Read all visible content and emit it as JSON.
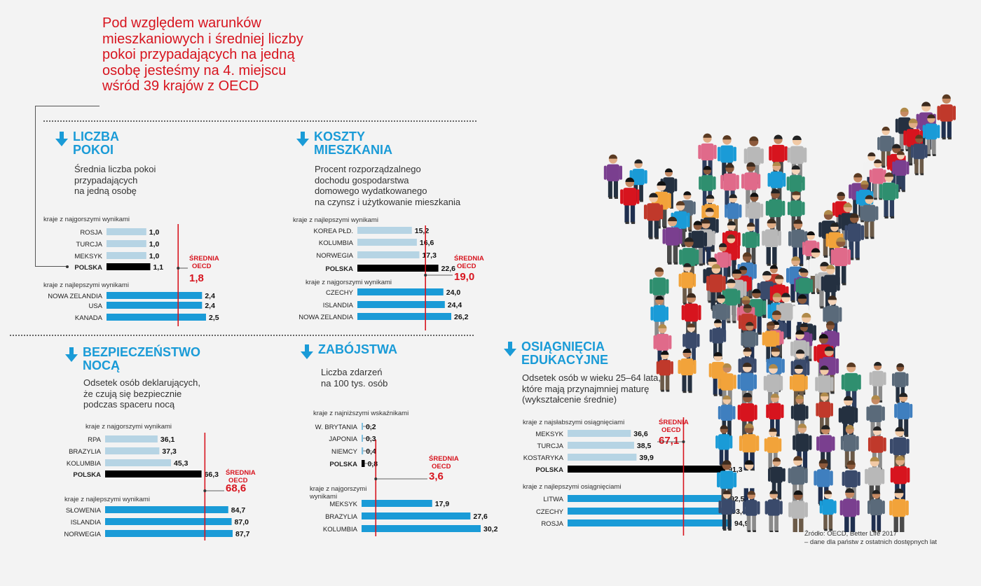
{
  "headline": "Pod względem warunków mieszkaniowych i średniej liczby pokoi przypadających na jedną osobę jesteśmy na 4. miejscu wśród 39 krajów z OECD",
  "source": {
    "line1": "Źródło: OECD, Better Life 2017",
    "line2": "– dane dla państw z ostatnich dostępnych lat"
  },
  "colors": {
    "accent": "#d7141e",
    "title": "#1a9bd7",
    "best_bar": "#1a9bd7",
    "worst_bar": "#b6d4e4",
    "poland_bar": "#000000"
  },
  "icons": [
    "arrow-down-icon"
  ],
  "sections": {
    "rooms": {
      "title_line1": "LICZBA",
      "title_line2": "POKOI",
      "desc_line1": "Średnia liczba pokoi",
      "desc_line2": "przypadających",
      "desc_line3": "na jedną osobę"
    },
    "housing": {
      "title_line1": "KOSZTY",
      "title_line2": "MIESZKANIA",
      "desc_line1": "Procent rozporządzalnego",
      "desc_line2": "dochodu gospodarstwa",
      "desc_line3": "domowego wydatkowanego",
      "desc_line4": "na czynsz i użytkowanie mieszkania"
    },
    "safety": {
      "title_line1": "BEZPIECZEŃSTWO",
      "title_line2": "NOCĄ",
      "desc_line1": "Odsetek osób deklarujących,",
      "desc_line2": "że czują się bezpiecznie",
      "desc_line3": "podczas spaceru nocą"
    },
    "homicides": {
      "title_line1": "ZABÓJSTWA",
      "desc_line1": "Liczba zdarzeń",
      "desc_line2": "na 100 tys. osób"
    },
    "education": {
      "title_line1": "OSIĄGNIĘCIA",
      "title_line2": "EDUKACYJNE",
      "desc_line1": "Odsetek osób w wieku 25–64 lata,",
      "desc_line2": "które mają przynajmniej maturę",
      "desc_line3": "(wykształcenie średnie)"
    }
  },
  "chart_data": [
    {
      "id": "rooms",
      "type": "bar",
      "max": 2.5,
      "group1_label": "kraje z najgorszymi wynikami",
      "group2_label": "kraje z najlepszymi wynikami",
      "group1": [
        {
          "c": "ROSJA",
          "v": 1.0,
          "t": "1,0"
        },
        {
          "c": "TURCJA",
          "v": 1.0,
          "t": "1,0"
        },
        {
          "c": "MEKSYK",
          "v": 1.0,
          "t": "1,0"
        }
      ],
      "poland": {
        "c": "POLSKA",
        "v": 1.1,
        "t": "1,1"
      },
      "group2": [
        {
          "c": "NOWA ZELANDIA",
          "v": 2.4,
          "t": "2,4"
        },
        {
          "c": "USA",
          "v": 2.4,
          "t": "2,4"
        },
        {
          "c": "KANADA",
          "v": 2.5,
          "t": "2,5"
        }
      ],
      "avg": {
        "label1": "ŚREDNIA",
        "label2": "OECD",
        "v": 1.8,
        "t": "1,8"
      }
    },
    {
      "id": "housing",
      "type": "bar",
      "max": 26.2,
      "group1_label": "kraje z najlepszymi wynikami",
      "group2_label": "kraje z najgorszymi wynikami",
      "group1": [
        {
          "c": "KOREA PŁD.",
          "v": 15.2,
          "t": "15,2"
        },
        {
          "c": "KOLUMBIA",
          "v": 16.6,
          "t": "16,6"
        },
        {
          "c": "NORWEGIA",
          "v": 17.3,
          "t": "17,3"
        }
      ],
      "poland": {
        "c": "POLSKA",
        "v": 22.6,
        "t": "22,6"
      },
      "group2": [
        {
          "c": "CZECHY",
          "v": 24.0,
          "t": "24,0"
        },
        {
          "c": "ISLANDIA",
          "v": 24.4,
          "t": "24,4"
        },
        {
          "c": "NOWA ZELANDIA",
          "v": 26.2,
          "t": "26,2"
        }
      ],
      "avg": {
        "label1": "ŚREDNIA",
        "label2": "OECD",
        "v": 19.0,
        "t": "19,0"
      }
    },
    {
      "id": "safety",
      "type": "bar",
      "max": 87.7,
      "group1_label": "kraje z najgorszymi wynikami",
      "group2_label": "kraje z najlepszymi wynikami",
      "group1": [
        {
          "c": "RPA",
          "v": 36.1,
          "t": "36,1"
        },
        {
          "c": "BRAZYLIA",
          "v": 37.3,
          "t": "37,3"
        },
        {
          "c": "KOLUMBIA",
          "v": 45.3,
          "t": "45,3"
        }
      ],
      "poland": {
        "c": "POLSKA",
        "v": 66.3,
        "t": "66,3"
      },
      "group2": [
        {
          "c": "SŁOWENIA",
          "v": 84.7,
          "t": "84,7"
        },
        {
          "c": "ISLANDIA",
          "v": 87.0,
          "t": "87,0"
        },
        {
          "c": "NORWEGIA",
          "v": 87.7,
          "t": "87,7"
        }
      ],
      "avg": {
        "label1": "ŚREDNIA",
        "label2": "OECD",
        "v": 68.6,
        "t": "68,6"
      }
    },
    {
      "id": "homicides",
      "type": "bar",
      "max": 30.2,
      "group1_label": "kraje z najniższymi wskaźnikami",
      "group2_label": "kraje z najgorszymi wynikami",
      "group1": [
        {
          "c": "W. BRYTANIA",
          "v": 0.2,
          "t": "0,2"
        },
        {
          "c": "JAPONIA",
          "v": 0.3,
          "t": "0,3"
        },
        {
          "c": "NIEMCY",
          "v": 0.4,
          "t": "0,4"
        }
      ],
      "poland": {
        "c": "POLSKA",
        "v": 0.8,
        "t": "0,8"
      },
      "group2": [
        {
          "c": "MEKSYK",
          "v": 17.9,
          "t": "17,9"
        },
        {
          "c": "BRAZYLIA",
          "v": 27.6,
          "t": "27,6"
        },
        {
          "c": "KOLUMBIA",
          "v": 30.2,
          "t": "30,2"
        }
      ],
      "avg": {
        "label1": "ŚREDNIA",
        "label2": "OECD",
        "v": 3.6,
        "t": "3,6"
      }
    },
    {
      "id": "education",
      "type": "bar",
      "max": 94.9,
      "group1_label": "kraje z najsłabszymi osiągnięciami",
      "group2_label": "kraje z najlepszymi osiągnięciami",
      "group1": [
        {
          "c": "MEKSYK",
          "v": 36.6,
          "t": "36,6"
        },
        {
          "c": "TURCJA",
          "v": 38.5,
          "t": "38,5"
        },
        {
          "c": "KOSTARYKA",
          "v": 39.9,
          "t": "39,9"
        }
      ],
      "poland": {
        "c": "POLSKA",
        "v": 91.3,
        "t": "91,3"
      },
      "group2": [
        {
          "c": "LITWA",
          "v": 92.5,
          "t": "92,5"
        },
        {
          "c": "CZECHY",
          "v": 93.4,
          "t": "93,4"
        },
        {
          "c": "ROSJA",
          "v": 94.9,
          "t": "94,9"
        }
      ],
      "avg": {
        "label1": "ŚREDNIA",
        "label2": "OECD",
        "v": 67.1,
        "t": "67,1"
      }
    }
  ]
}
